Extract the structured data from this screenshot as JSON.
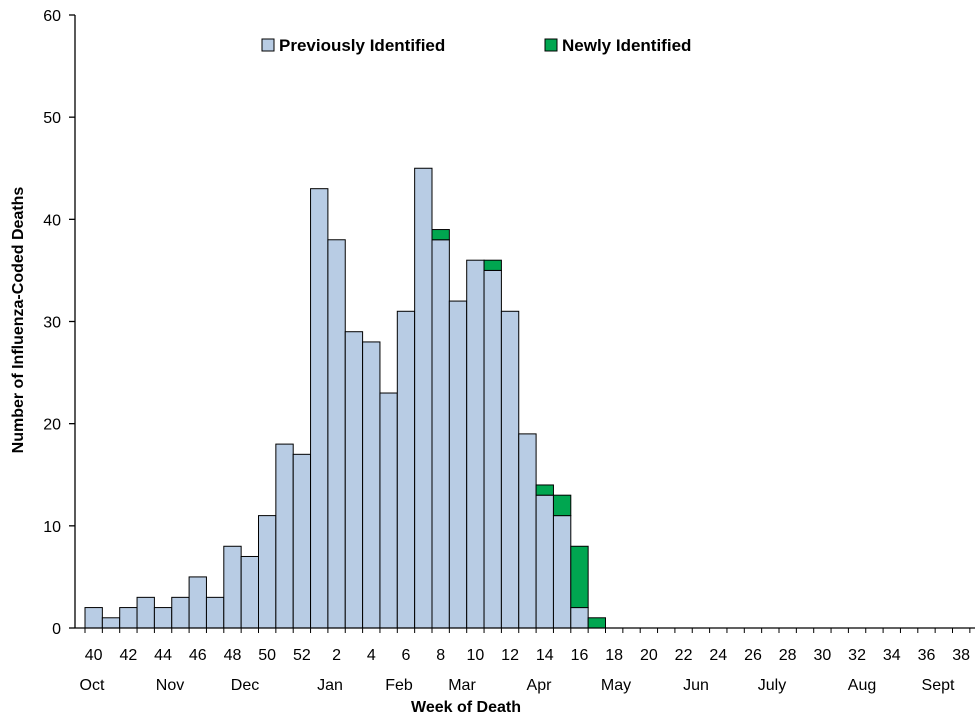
{
  "chart_data": {
    "type": "bar",
    "stacked": true,
    "title": "",
    "xlabel": "Week of Death",
    "ylabel": "Number of Influenza-Coded Deaths",
    "ylim": [
      0,
      60
    ],
    "yticks": [
      0,
      10,
      20,
      30,
      40,
      50,
      60
    ],
    "grid": false,
    "legend_position": "top",
    "categories": [
      40,
      41,
      42,
      43,
      44,
      45,
      46,
      47,
      48,
      49,
      50,
      51,
      52,
      1,
      2,
      3,
      4,
      5,
      6,
      7,
      8,
      9,
      10,
      11,
      12,
      13,
      14,
      15,
      16,
      17,
      18,
      19,
      20,
      21,
      22,
      23,
      24,
      25,
      26,
      27,
      28,
      29,
      30,
      31,
      32,
      33,
      34,
      35,
      36,
      37,
      38,
      39
    ],
    "week_tick_labels": [
      "40",
      "42",
      "44",
      "46",
      "48",
      "50",
      "52",
      "2",
      "4",
      "6",
      "8",
      "10",
      "12",
      "14",
      "16",
      "18",
      "20",
      "22",
      "24",
      "26",
      "28",
      "30",
      "32",
      "34",
      "36",
      "38"
    ],
    "month_labels": [
      "Oct",
      "Nov",
      "Dec",
      "Jan",
      "Feb",
      "Mar",
      "Apr",
      "May",
      "Jun",
      "July",
      "Aug",
      "Sept"
    ],
    "series": [
      {
        "name": "Previously Identified",
        "color": "#B8CCE4",
        "values": [
          2,
          1,
          2,
          3,
          2,
          3,
          5,
          3,
          8,
          7,
          11,
          18,
          17,
          43,
          38,
          29,
          28,
          23,
          31,
          45,
          38,
          32,
          36,
          35,
          31,
          19,
          13,
          11,
          2,
          0,
          0,
          0,
          0,
          0,
          0,
          0,
          0,
          0,
          0,
          0,
          0,
          0,
          0,
          0,
          0,
          0,
          0,
          0,
          0,
          0,
          0,
          0
        ]
      },
      {
        "name": "Newly Identified",
        "color": "#00A650",
        "values": [
          0,
          0,
          0,
          0,
          0,
          0,
          0,
          0,
          0,
          0,
          0,
          0,
          0,
          0,
          0,
          0,
          0,
          0,
          0,
          0,
          1,
          0,
          0,
          1,
          0,
          0,
          1,
          2,
          6,
          1,
          0,
          0,
          0,
          0,
          0,
          0,
          0,
          0,
          0,
          0,
          0,
          0,
          0,
          0,
          0,
          0,
          0,
          0,
          0,
          0,
          0,
          0
        ]
      }
    ]
  }
}
